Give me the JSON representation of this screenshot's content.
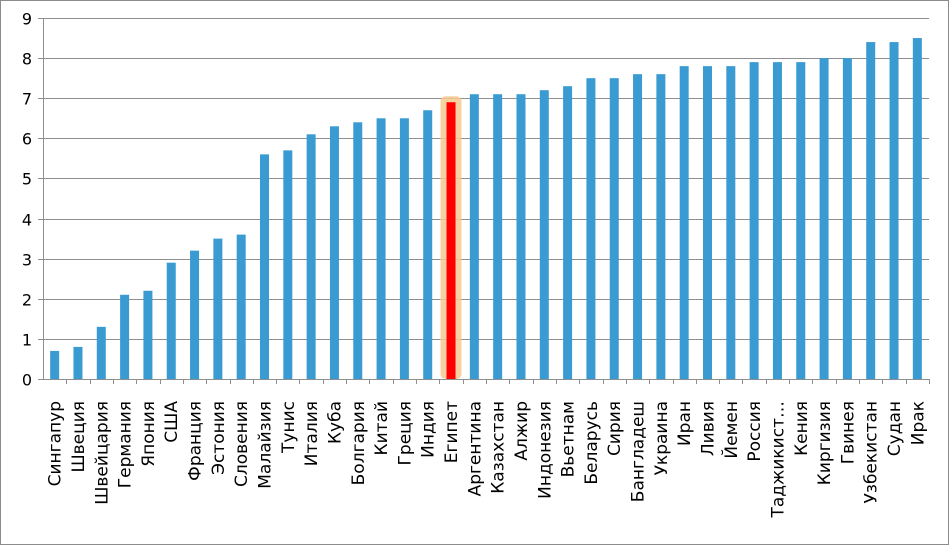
{
  "chart_data": {
    "type": "bar",
    "title": "",
    "xlabel": "",
    "ylabel": "",
    "ylim": [
      0,
      9
    ],
    "yticks": [
      0,
      1,
      2,
      3,
      4,
      5,
      6,
      7,
      8,
      9
    ],
    "grid": true,
    "legend": "none",
    "colors": {
      "bar": "#3a9bd2",
      "highlight_bar": "#ff0000",
      "highlight_glow": "#f7c98f",
      "grid": "#8f8f8f"
    },
    "highlight_category": "Египет",
    "categories": [
      "Сингапур",
      "Швеция",
      "Швейцария",
      "Германия",
      "Япония",
      "США",
      "Франция",
      "Эстония",
      "Словения",
      "Малайзия",
      "Тунис",
      "Италия",
      "Куба",
      "Болгария",
      "Китай",
      "Греция",
      "Индия",
      "Египет",
      "Аргентина",
      "Казахстан",
      "Алжир",
      "Индонезия",
      "Вьетнам",
      "Беларусь",
      "Сирия",
      "Бангладеш",
      "Украина",
      "Иран",
      "Ливия",
      "Йемен",
      "Россия",
      "Таджикист…",
      "Кения",
      "Киргизия",
      "Гвинея",
      "Узбекистан",
      "Судан",
      "Ирак"
    ],
    "values": [
      0.7,
      0.8,
      1.3,
      2.1,
      2.2,
      2.9,
      3.2,
      3.5,
      3.6,
      5.6,
      5.7,
      6.1,
      6.3,
      6.4,
      6.5,
      6.5,
      6.7,
      6.9,
      7.1,
      7.1,
      7.1,
      7.2,
      7.3,
      7.5,
      7.5,
      7.6,
      7.6,
      7.8,
      7.8,
      7.8,
      7.9,
      7.9,
      7.9,
      8.0,
      8.0,
      8.4,
      8.4,
      8.5
    ]
  }
}
